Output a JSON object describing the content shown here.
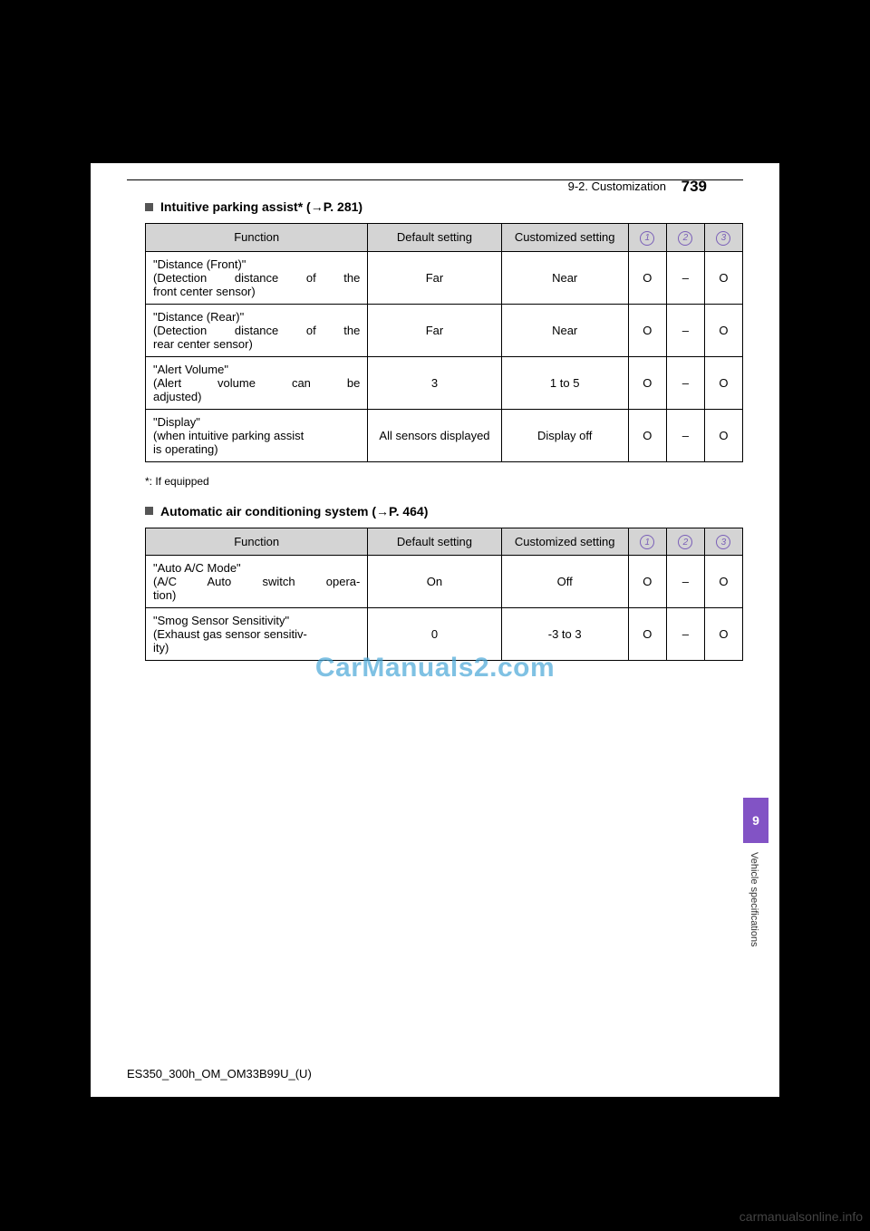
{
  "header": {
    "section": "9-2. Customization",
    "pageNumber": "739"
  },
  "subsection1": {
    "title_prefix": "Intuitive parking assist",
    "asterisk": "*",
    "title_suffix": " (",
    "arrow": "→",
    "page_ref": "P. 281)"
  },
  "table1": {
    "headers": {
      "function": "Function",
      "default": "Default setting",
      "custom": "Customized setting",
      "c1": "1",
      "c2": "2",
      "c3": "3"
    },
    "rows": [
      {
        "func_title": "\"Distance (Front)\"",
        "func_desc1": "(Detection distance of the",
        "func_desc2": "front center sensor)",
        "default": "Far",
        "custom": "Near",
        "v1": "O",
        "v2": "–",
        "v3": "O"
      },
      {
        "func_title": "\"Distance (Rear)\"",
        "func_desc1": "(Detection distance of the",
        "func_desc2": "rear center sensor)",
        "default": "Far",
        "custom": "Near",
        "v1": "O",
        "v2": "–",
        "v3": "O"
      },
      {
        "func_title": "\"Alert Volume\"",
        "func_desc1": "(Alert volume can be",
        "func_desc2": "adjusted)",
        "default": "3",
        "custom": "1 to 5",
        "v1": "O",
        "v2": "–",
        "v3": "O"
      },
      {
        "func_title": "\"Display\"",
        "func_desc1": "(when intuitive parking assist",
        "func_desc2": "is operating)",
        "default": "All sensors displayed",
        "custom": "Display off",
        "v1": "O",
        "v2": "–",
        "v3": "O"
      }
    ]
  },
  "footnote": "*: If equipped",
  "subsection2": {
    "title_prefix": "Automatic air conditioning system (",
    "arrow": "→",
    "page_ref": "P. 464)"
  },
  "table2": {
    "headers": {
      "function": "Function",
      "default": "Default setting",
      "custom": "Customized setting",
      "c1": "1",
      "c2": "2",
      "c3": "3"
    },
    "rows": [
      {
        "func_title": "\"Auto A/C Mode\"",
        "func_desc1": "(A/C Auto switch opera-",
        "func_desc2": "tion)",
        "default": "On",
        "custom": "Off",
        "v1": "O",
        "v2": "–",
        "v3": "O"
      },
      {
        "func_title": "\"Smog Sensor Sensitivity\"",
        "func_desc1": "(Exhaust gas sensor sensitiv-",
        "func_desc2": "ity)",
        "default": "0",
        "custom": "-3 to 3",
        "v1": "O",
        "v2": "–",
        "v3": "O"
      }
    ]
  },
  "tab": {
    "number": "9",
    "label": "Vehicle specifications"
  },
  "docId": "ES350_300h_OM_OM33B99U_(U)",
  "watermark": "CarManuals2.com",
  "siteWatermark": "carmanualsonline.info"
}
